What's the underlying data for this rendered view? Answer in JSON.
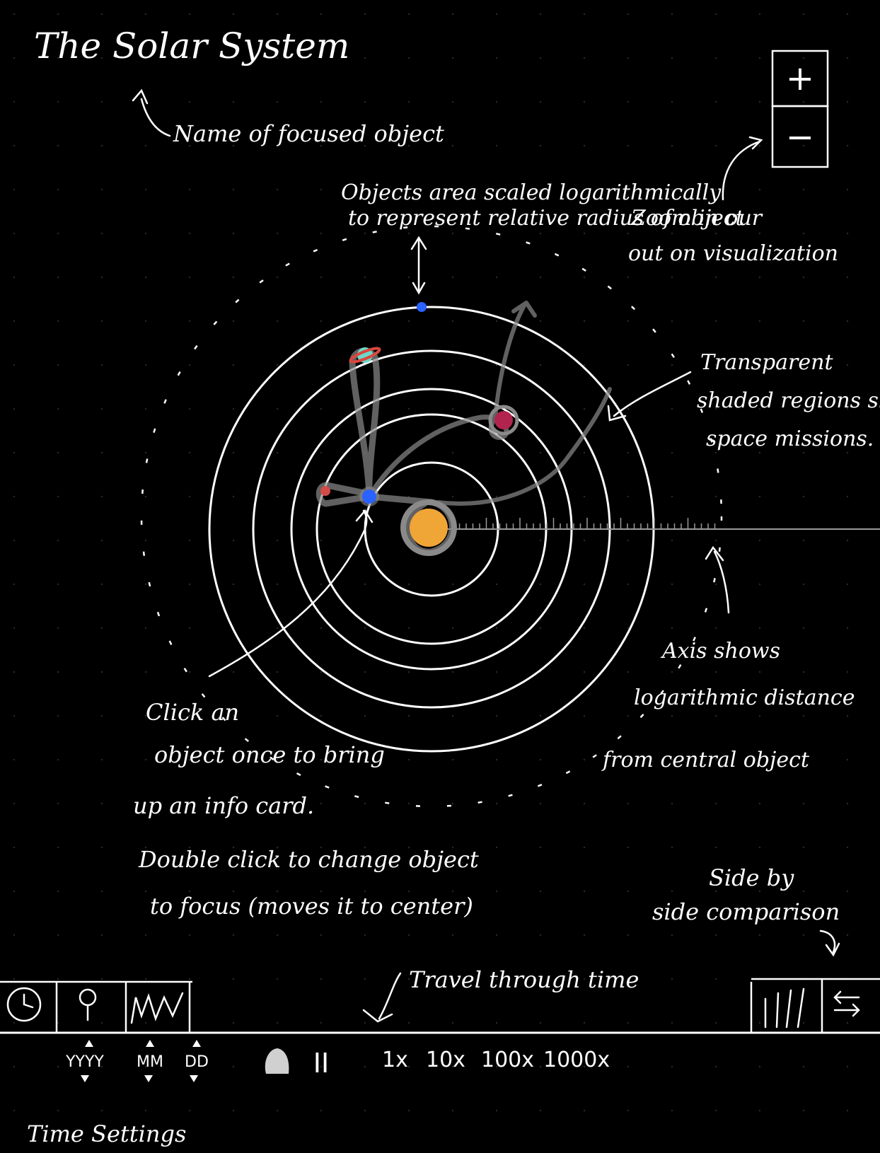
{
  "title": "The Solar System",
  "annotations": {
    "name_of_focused": "Name of focused object",
    "objects_scaled_1": "Objects area scaled logarithmically",
    "objects_scaled_2": "to represent relative radius of object",
    "zoom_1": "Zoom in our",
    "zoom_2": "out on visualization",
    "transparent_1": "Transparent",
    "transparent_2": "shaded regions show",
    "transparent_3": "space missions.",
    "axis_1": "Axis shows",
    "axis_2": "logarithmic distance",
    "axis_3": "from central object",
    "click_1": "Click an",
    "click_2": "object once to bring",
    "click_3": "up an info card.",
    "dbl_1": "Double click to change object",
    "dbl_2": "to focus (moves it to center)",
    "side_1": "Side by",
    "side_2": "side comparison",
    "travel": "Travel through time",
    "time_settings": "Time Settings"
  },
  "zoom": {
    "plus": "+",
    "minus": "−"
  },
  "time_controls": {
    "year": "YYYY",
    "month": "MM",
    "day": "DD",
    "pause": "II",
    "speeds": [
      "1x",
      "10x",
      "100x",
      "1000x"
    ]
  },
  "icons": {
    "clock": "clock-icon",
    "pin": "map-pin-icon",
    "wave": "chart-line-icon",
    "bars": "bar-chart-icon",
    "swap": "swap-arrows-icon",
    "flag": "flag-icon"
  },
  "colors": {
    "background": "#000000",
    "sun": "#f0a537",
    "earth": "#2962ff",
    "mars": "#d24b48",
    "saturn": "#6fd8c7",
    "saturn_ring": "#d9473e",
    "planet_x": "#b0244d",
    "mission": "#888888"
  }
}
